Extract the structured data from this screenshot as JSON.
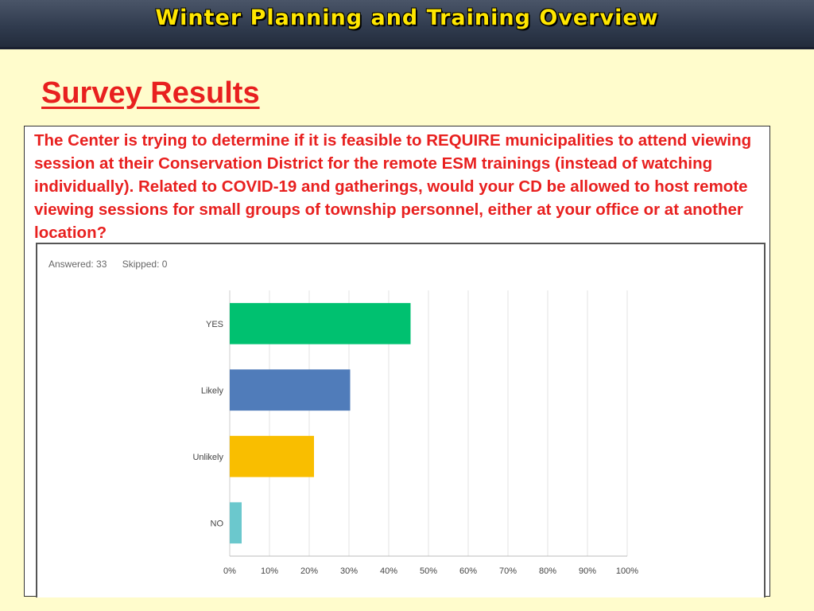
{
  "header": {
    "title": "Winter Planning and Training Overview"
  },
  "section": {
    "title": "Survey Results"
  },
  "question": {
    "text": "The Center is trying to determine if it is feasible to REQUIRE municipalities to attend viewing session at their Conservation District for the remote ESM trainings (instead of watching individually). Related to COVID-19 and gatherings, would your CD be allowed to host remote viewing sessions for small groups of township personnel, either at your office or at another location?"
  },
  "stats": {
    "answered": "Answered: 33",
    "skipped": "Skipped: 0"
  },
  "colors": {
    "title_red": "#e8201f",
    "header_yellow": "#ffe600",
    "background": "#fffccc"
  },
  "chart_data": {
    "type": "bar",
    "orientation": "horizontal",
    "categories": [
      "YES",
      "Likely",
      "Unlikely",
      "NO"
    ],
    "values": [
      45.5,
      30.3,
      21.2,
      3.0
    ],
    "colors": [
      "#00c170",
      "#507cba",
      "#f9be00",
      "#6bc8cd"
    ],
    "xlim": [
      0,
      100
    ],
    "xticks": [
      "0%",
      "10%",
      "20%",
      "30%",
      "40%",
      "50%",
      "60%",
      "70%",
      "80%",
      "90%",
      "100%"
    ],
    "grid": "vertical"
  }
}
